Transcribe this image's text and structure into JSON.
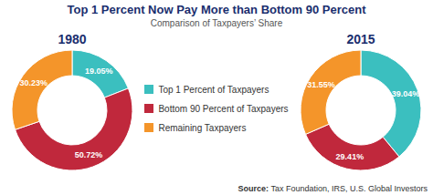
{
  "title": "Top 1 Percent Now Pay More than Bottom 90 Percent",
  "subtitle": "Comparison of Taxpayers’ Share",
  "annotations": [
    "Source:",
    " Tax Foundation, IRS, U.S. Global Investors"
  ],
  "chart_data": [
    {
      "type": "pie",
      "title": "1980",
      "categories": [
        "Top 1 Percent of Taxpayers",
        "Bottom 90 Percent of Taxpayers",
        "Remaining Taxpayers"
      ],
      "values": [
        19.05,
        50.72,
        30.23
      ],
      "value_labels": [
        "19.05%",
        "50.72%",
        "30.23%"
      ],
      "colors": [
        "#3bbfbf",
        "#c0283c",
        "#f4952a"
      ],
      "data_labels": true
    },
    {
      "type": "pie",
      "title": "2015",
      "categories": [
        "Top 1 Percent of Taxpayers",
        "Bottom 90 Percent of Taxpayers",
        "Remaining Taxpayers"
      ],
      "values": [
        39.04,
        29.41,
        31.55
      ],
      "value_labels": [
        "39.04%",
        "29.41%",
        "31.55%"
      ],
      "colors": [
        "#3bbfbf",
        "#c0283c",
        "#f4952a"
      ],
      "data_labels": true
    }
  ]
}
